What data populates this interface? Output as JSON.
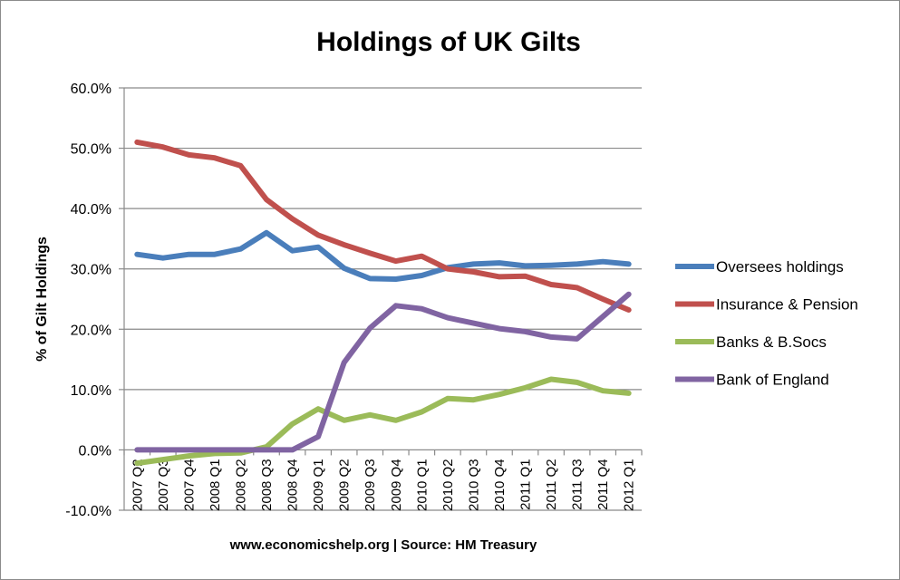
{
  "chart_data": {
    "type": "line",
    "title": "Holdings of UK Gilts",
    "xlabel": "www.economicshelp.org | Source: HM Treasury",
    "ylabel": "% of Gilt Holdings",
    "ylim": [
      -10,
      60
    ],
    "yticks": [
      -10,
      0,
      10,
      20,
      30,
      40,
      50,
      60
    ],
    "ytick_labels": [
      "-10.0%",
      "0.0%",
      "10.0%",
      "20.0%",
      "30.0%",
      "40.0%",
      "50.0%",
      "60.0%"
    ],
    "grid": "horizontal",
    "legend_position": "right",
    "categories": [
      "2007 Q2",
      "2007 Q3",
      "2007 Q4",
      "2008 Q1",
      "2008 Q2",
      "2008 Q3",
      "2008 Q4",
      "2009 Q1",
      "2009 Q2",
      "2009 Q3",
      "2009 Q4",
      "2010 Q1",
      "2010 Q2",
      "2010 Q3",
      "2010 Q4",
      "2011 Q1",
      "2011 Q2",
      "2011 Q3",
      "2011 Q4",
      "2012 Q1"
    ],
    "series": [
      {
        "name": "Oversees holdings",
        "color": "#4a7ebb",
        "values": [
          32.4,
          31.8,
          32.4,
          32.4,
          33.3,
          36.0,
          33.0,
          33.6,
          30.1,
          28.4,
          28.3,
          28.9,
          30.2,
          30.8,
          31.0,
          30.5,
          30.6,
          30.8,
          31.2,
          30.8
        ]
      },
      {
        "name": "Insurance & Pension",
        "color": "#c0504d",
        "values": [
          51.0,
          50.2,
          48.9,
          48.4,
          47.1,
          41.5,
          38.3,
          35.6,
          34.0,
          32.6,
          31.3,
          32.1,
          30.0,
          29.5,
          28.7,
          28.8,
          27.4,
          26.9,
          25.0,
          23.2
        ]
      },
      {
        "name": "Banks & B.Socs",
        "color": "#9bbb59",
        "values": [
          -2.2,
          -1.6,
          -1.0,
          -0.6,
          -0.5,
          0.5,
          4.3,
          6.8,
          4.9,
          5.8,
          4.9,
          6.3,
          8.5,
          8.3,
          9.2,
          10.3,
          11.7,
          11.2,
          9.8,
          9.4
        ]
      },
      {
        "name": "Bank of England",
        "color": "#8064a2",
        "values": [
          0.0,
          0.0,
          0.0,
          0.0,
          0.0,
          0.0,
          0.0,
          2.2,
          14.5,
          20.2,
          23.9,
          23.4,
          21.9,
          21.0,
          20.1,
          19.6,
          18.7,
          18.4,
          22.1,
          25.8
        ]
      }
    ]
  }
}
